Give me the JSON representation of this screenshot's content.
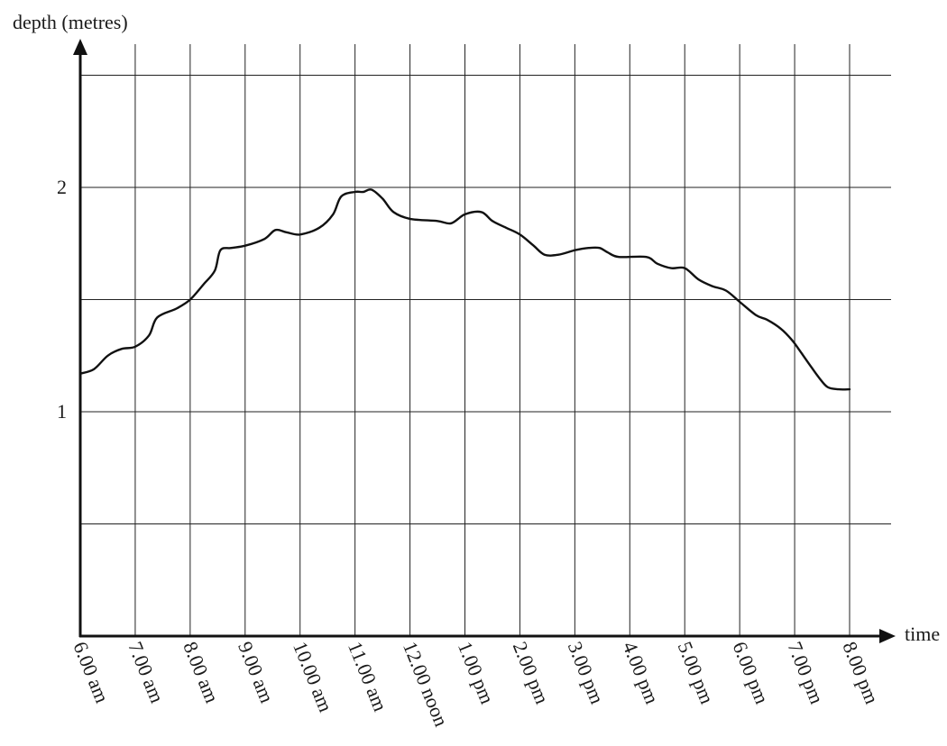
{
  "chart_data": {
    "type": "line",
    "title": "",
    "xlabel": "time",
    "ylabel": "depth (metres)",
    "x_ticks": [
      "6.00 am",
      "7.00 am",
      "8.00 am",
      "9.00 am",
      "10.00 am",
      "11.00 am",
      "12.00 noon",
      "1.00 pm",
      "2.00 pm",
      "3.00 pm",
      "4.00 pm",
      "5.00 pm",
      "6.00 pm",
      "7.00 pm",
      "8.00 pm"
    ],
    "y_tick_labels": [
      {
        "value": 1,
        "label": "1"
      },
      {
        "value": 2,
        "label": "2"
      }
    ],
    "y_gridlines": [
      0.5,
      1,
      1.5,
      2,
      2.5
    ],
    "xlim_hours": [
      6,
      20
    ],
    "ylim": [
      0,
      2.6
    ],
    "grid": true,
    "series": [
      {
        "color": "#111111",
        "points": [
          [
            6.0,
            1.17
          ],
          [
            6.25,
            1.19
          ],
          [
            6.5,
            1.25
          ],
          [
            6.75,
            1.28
          ],
          [
            7.0,
            1.29
          ],
          [
            7.25,
            1.34
          ],
          [
            7.4,
            1.42
          ],
          [
            7.75,
            1.46
          ],
          [
            8.0,
            1.5
          ],
          [
            8.25,
            1.57
          ],
          [
            8.45,
            1.63
          ],
          [
            8.55,
            1.72
          ],
          [
            8.75,
            1.73
          ],
          [
            9.0,
            1.74
          ],
          [
            9.35,
            1.77
          ],
          [
            9.55,
            1.81
          ],
          [
            9.75,
            1.8
          ],
          [
            10.0,
            1.79
          ],
          [
            10.35,
            1.82
          ],
          [
            10.6,
            1.88
          ],
          [
            10.75,
            1.96
          ],
          [
            11.0,
            1.98
          ],
          [
            11.15,
            1.98
          ],
          [
            11.3,
            1.99
          ],
          [
            11.5,
            1.95
          ],
          [
            11.7,
            1.89
          ],
          [
            12.0,
            1.86
          ],
          [
            12.5,
            1.85
          ],
          [
            12.75,
            1.84
          ],
          [
            13.0,
            1.88
          ],
          [
            13.3,
            1.89
          ],
          [
            13.5,
            1.85
          ],
          [
            13.75,
            1.82
          ],
          [
            14.0,
            1.79
          ],
          [
            14.25,
            1.74
          ],
          [
            14.45,
            1.7
          ],
          [
            14.7,
            1.7
          ],
          [
            15.0,
            1.72
          ],
          [
            15.25,
            1.73
          ],
          [
            15.45,
            1.73
          ],
          [
            15.6,
            1.71
          ],
          [
            15.8,
            1.69
          ],
          [
            16.3,
            1.69
          ],
          [
            16.5,
            1.66
          ],
          [
            16.75,
            1.64
          ],
          [
            17.0,
            1.64
          ],
          [
            17.25,
            1.59
          ],
          [
            17.5,
            1.56
          ],
          [
            17.75,
            1.54
          ],
          [
            18.0,
            1.49
          ],
          [
            18.3,
            1.43
          ],
          [
            18.5,
            1.41
          ],
          [
            18.75,
            1.37
          ],
          [
            18.95,
            1.32
          ],
          [
            19.1,
            1.27
          ],
          [
            19.3,
            1.2
          ],
          [
            19.45,
            1.15
          ],
          [
            19.6,
            1.11
          ],
          [
            19.8,
            1.1
          ],
          [
            20.0,
            1.1
          ]
        ]
      }
    ]
  }
}
